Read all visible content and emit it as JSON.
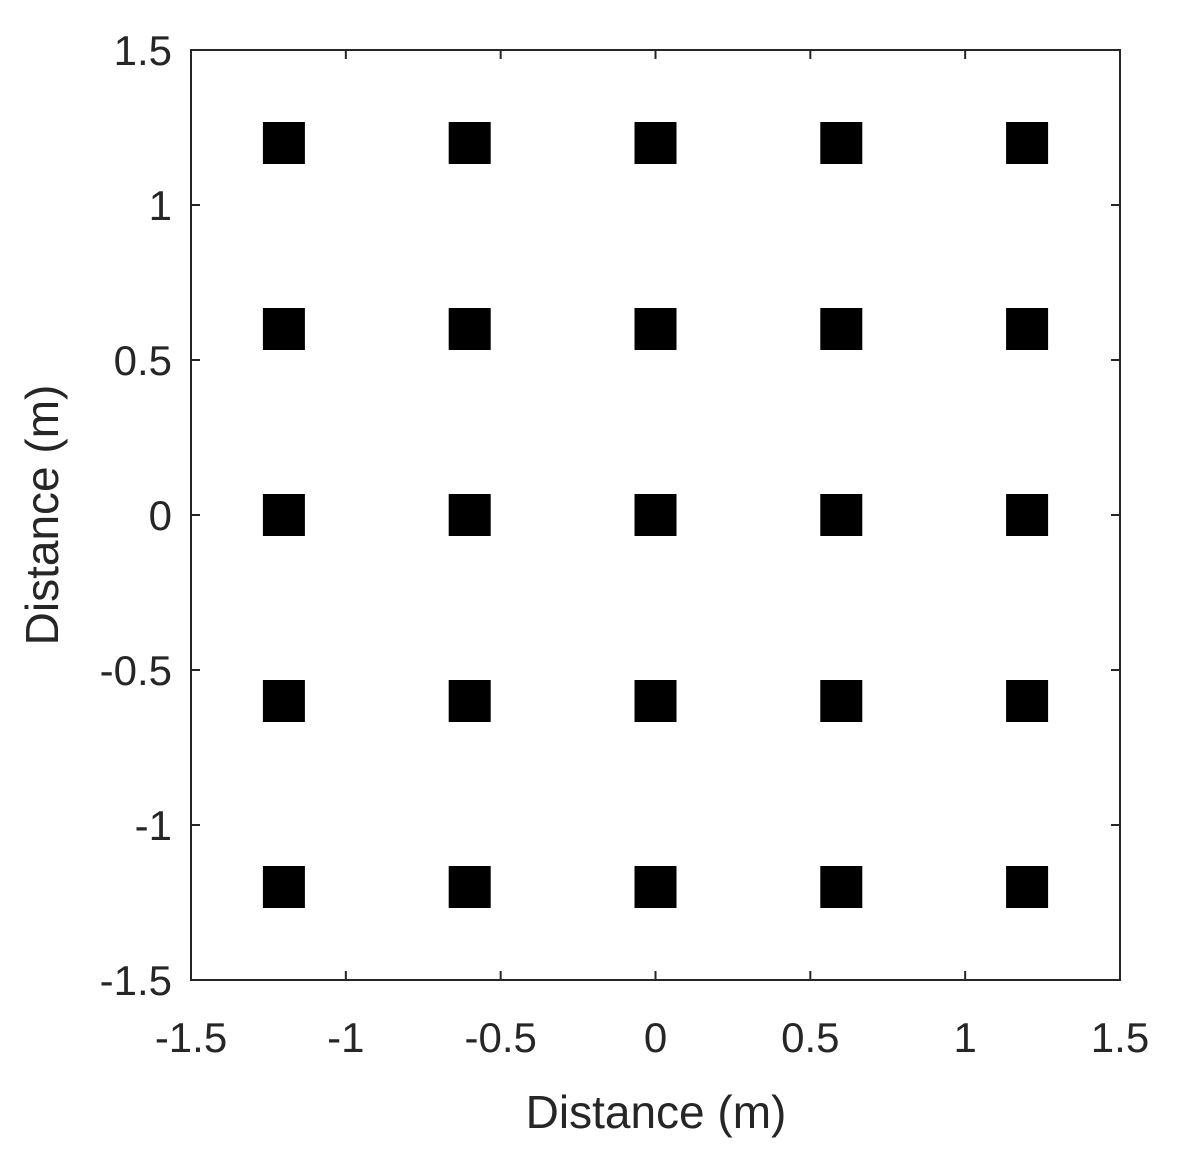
{
  "chart_data": {
    "type": "scatter",
    "title": "",
    "xlabel": "Distance (m)",
    "ylabel": "Distance (m)",
    "xlim": [
      -1.5,
      1.5
    ],
    "ylim": [
      -1.5,
      1.5
    ],
    "x_ticks": [
      -1.5,
      -1,
      -0.5,
      0,
      0.5,
      1,
      1.5
    ],
    "x_tick_labels": [
      "-1.5",
      "-1",
      "-0.5",
      "0",
      "0.5",
      "1",
      "1.5"
    ],
    "y_ticks": [
      1.5,
      1,
      0.5,
      0,
      -0.5,
      -1,
      -1.5
    ],
    "y_tick_labels": [
      "1.5",
      "1",
      "0.5",
      "0",
      "-0.5",
      "-1",
      "-1.5"
    ],
    "grid": false,
    "marker": "square",
    "marker_color": "#000000",
    "series": [
      {
        "points": [
          {
            "x": -1.2,
            "y": 1.2
          },
          {
            "x": -0.6,
            "y": 1.2
          },
          {
            "x": 0,
            "y": 1.2
          },
          {
            "x": 0.6,
            "y": 1.2
          },
          {
            "x": 1.2,
            "y": 1.2
          },
          {
            "x": -1.2,
            "y": 0.6
          },
          {
            "x": -0.6,
            "y": 0.6
          },
          {
            "x": 0,
            "y": 0.6
          },
          {
            "x": 0.6,
            "y": 0.6
          },
          {
            "x": 1.2,
            "y": 0.6
          },
          {
            "x": -1.2,
            "y": 0
          },
          {
            "x": -0.6,
            "y": 0
          },
          {
            "x": 0,
            "y": 0
          },
          {
            "x": 0.6,
            "y": 0
          },
          {
            "x": 1.2,
            "y": 0
          },
          {
            "x": -1.2,
            "y": -0.6
          },
          {
            "x": -0.6,
            "y": -0.6
          },
          {
            "x": 0,
            "y": -0.6
          },
          {
            "x": 0.6,
            "y": -0.6
          },
          {
            "x": 1.2,
            "y": -0.6
          },
          {
            "x": -1.2,
            "y": -1.2
          },
          {
            "x": -0.6,
            "y": -1.2
          },
          {
            "x": 0,
            "y": -1.2
          },
          {
            "x": 0.6,
            "y": -1.2
          },
          {
            "x": 1.2,
            "y": -1.2
          }
        ]
      }
    ]
  }
}
